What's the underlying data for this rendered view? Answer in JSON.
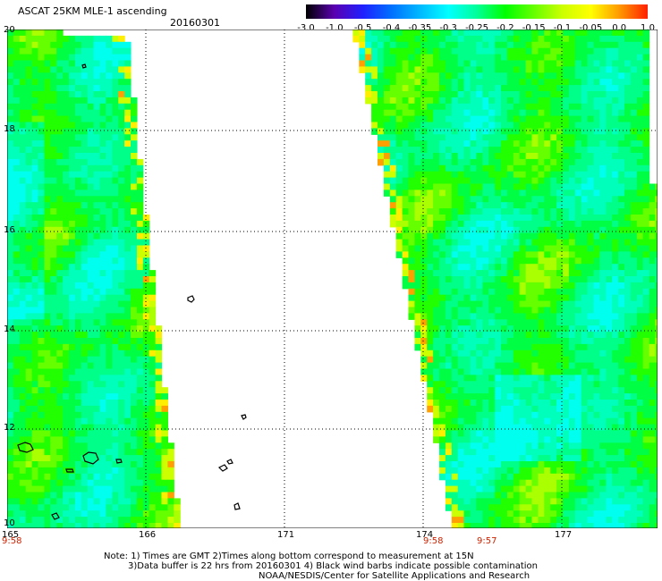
{
  "header": {
    "title": "ASCAT 25KM MLE-1 ascending",
    "date": "20160301"
  },
  "color_scale": {
    "labels": [
      "-3.0",
      "-1.0",
      "-0.5",
      "-0.4",
      "-0.35",
      "-0.3",
      "-0.25",
      "-0.2",
      "-0.15",
      "-0.1",
      "-0.05",
      "0.0",
      "1.0"
    ],
    "colors": [
      "#000000",
      "#5a00b0",
      "#2020ff",
      "#0070ff",
      "#00b8ff",
      "#00ffff",
      "#00ff99",
      "#00ff00",
      "#66ff00",
      "#ccff00",
      "#ffff00",
      "#ff9900",
      "#ff2000"
    ]
  },
  "map": {
    "lat_labels": [
      "20",
      "18",
      "16",
      "14",
      "12",
      "10"
    ],
    "lon_labels": [
      "165",
      "166",
      "171",
      "174",
      "177"
    ],
    "time_labels": [
      "9:58",
      "9:58",
      "9:57"
    ]
  },
  "notes": {
    "line1": "Note: 1) Times are GMT 2)Times along bottom correspond to measurement at 15N",
    "line2": "3)Data buffer is 22 hrs from 20160301 4) Black wind barbs indicate possible contamination",
    "line3": "NOAA/NESDIS/Center for Satellite Applications and Research"
  }
}
